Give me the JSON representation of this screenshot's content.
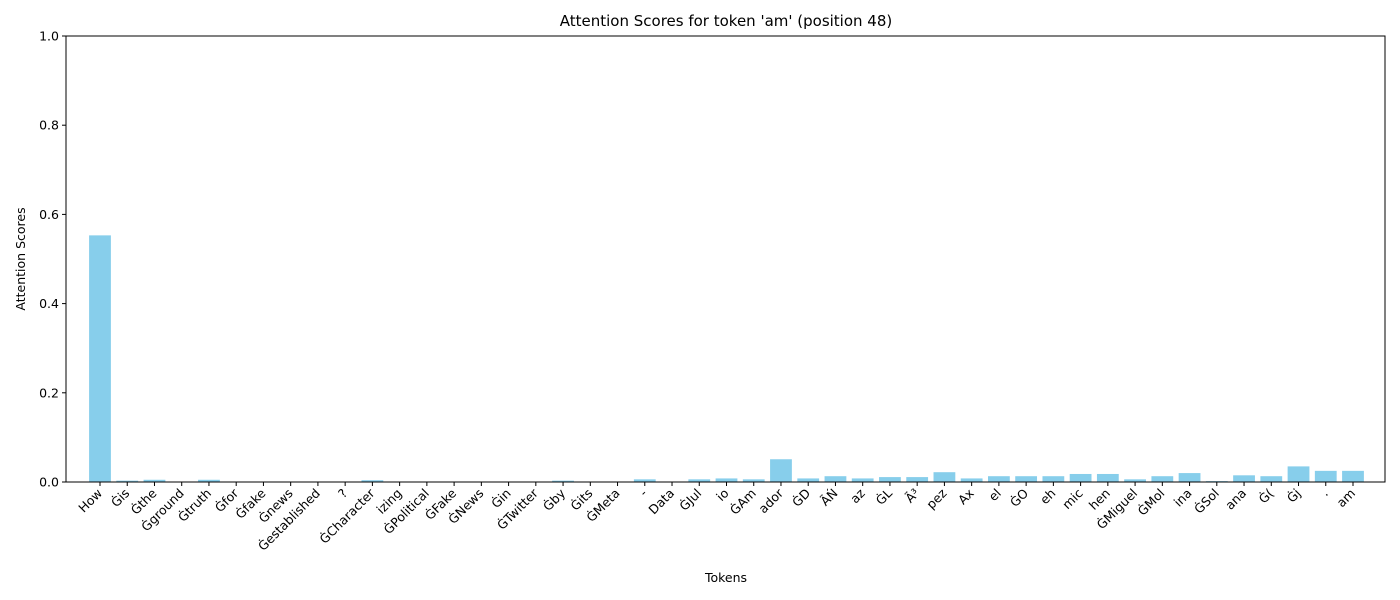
{
  "chart_data": {
    "type": "bar",
    "title": "Attention Scores for token 'am' (position 48)",
    "xlabel": "Tokens",
    "ylabel": "Attention Scores",
    "ylim": [
      0,
      1.0
    ],
    "yticks": [
      "0.0",
      "0.2",
      "0.4",
      "0.6",
      "0.8",
      "1.0"
    ],
    "grid": false,
    "bar_color": "#87ceeb",
    "categories": [
      "How",
      "Ġis",
      "Ġthe",
      "Ġground",
      "Ġtruth",
      "Ġfor",
      "Ġfake",
      "Ġnews",
      "Ġestablished",
      "?",
      "ĠCharacter",
      "izing",
      "ĠPolitical",
      "ĠFake",
      "ĠNews",
      "Ġin",
      "ĠTwitter",
      "Ġby",
      "Ġits",
      "ĠMeta",
      "-",
      "Data",
      "ĠJul",
      "io",
      "ĠAm",
      "ador",
      "ĠD",
      "ÃŃ",
      "az",
      "ĠL",
      "Ã³",
      "pez",
      "Ax",
      "el",
      "ĠO",
      "eh",
      "mic",
      "hen",
      "ĠMiguel",
      "ĠMol",
      "ina",
      "ĠSol",
      "ana",
      "Ġ(",
      "Ġj",
      ".",
      "am"
    ],
    "values": [
      0.553,
      0.003,
      0.005,
      0.001,
      0.005,
      0.001,
      0.001,
      0.001,
      0.001,
      0.001,
      0.004,
      0.001,
      0.0,
      0.0,
      0.0,
      0.001,
      0.0,
      0.003,
      0.001,
      0.001,
      0.006,
      0.001,
      0.006,
      0.008,
      0.006,
      0.051,
      0.008,
      0.013,
      0.008,
      0.011,
      0.011,
      0.022,
      0.008,
      0.013,
      0.013,
      0.013,
      0.018,
      0.018,
      0.006,
      0.013,
      0.02,
      0.002,
      0.015,
      0.013,
      0.035,
      0.025,
      0.025
    ]
  }
}
